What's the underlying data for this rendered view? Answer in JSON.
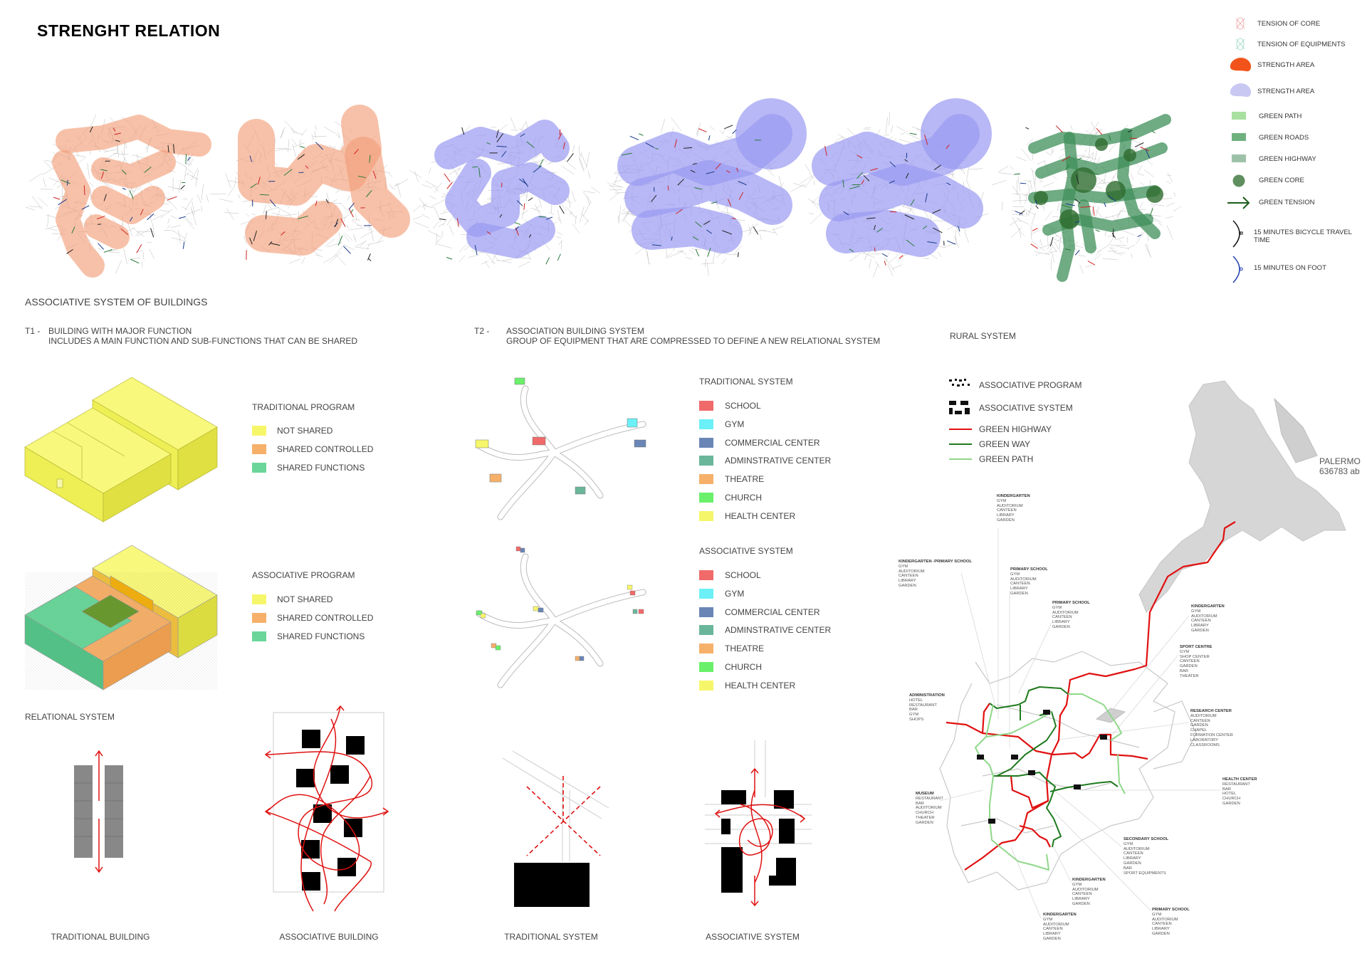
{
  "title": "STRENGHT RELATION",
  "legend": {
    "items": [
      {
        "icon": "tension-of-core-icon",
        "label": "TENSION OF CORE"
      },
      {
        "icon": "tension-of-equipments-icon",
        "label": "TENSION OF EQUIPMENTS"
      },
      {
        "icon": "strength-area-orange-icon",
        "label": "STRENGTH AREA"
      },
      {
        "icon": "strength-area-purple-icon",
        "label": "STRENGTH AREA"
      },
      {
        "icon": "green-path-icon",
        "label": "GREEN PATH"
      },
      {
        "icon": "green-roads-icon",
        "label": "GREEN ROADS"
      },
      {
        "icon": "green-highway-icon",
        "label": "GREEN HIGHWAY"
      },
      {
        "icon": "green-core-icon",
        "label": "GREEN CORE"
      },
      {
        "icon": "green-tension-arrow-icon",
        "label": "GREEN TENSION"
      },
      {
        "icon": "bicycle-arc-icon",
        "label": "15 MINUTES BICYCLE TRAVEL TIME"
      },
      {
        "icon": "foot-arc-icon",
        "label": "15 MINUTES ON FOOT"
      }
    ],
    "colors": {
      "orange": "#f26a3a",
      "purple": "#b9b9f0",
      "green_path": "#a8e0a0",
      "green_roads": "#6fb07f",
      "green_core": "#5f8f5f",
      "green_tension": "#1d5e1d",
      "foot": "#2340b0"
    }
  },
  "section_title": "ASSOCIATIVE SYSTEM OF BUILDINGS",
  "t1": {
    "code": "T1 -",
    "line1": "BUILDING WITH MAJOR FUNCTION",
    "line2": "INCLUDES A MAIN FUNCTION AND SUB-FUNCTIONS THAT CAN BE SHARED"
  },
  "t2": {
    "code": "T2 -",
    "line1": "ASSOCIATION BUILDING SYSTEM",
    "line2": "GROUP OF EQUIPMENT THAT ARE COMPRESSED TO DEFINE A NEW RELATIONAL SYSTEM"
  },
  "rural_title": "RURAL SYSTEM",
  "traditional_program": {
    "title": "TRADITIONAL PROGRAM",
    "items": [
      {
        "label": "NOT SHARED",
        "color": "#f6f66a"
      },
      {
        "label": "SHARED CONTROLLED",
        "color": "#f6b06a"
      },
      {
        "label": "SHARED FUNCTIONS",
        "color": "#6ad69a"
      }
    ]
  },
  "associative_program": {
    "title": "ASSOCIATIVE PROGRAM",
    "items": [
      {
        "label": "NOT SHARED",
        "color": "#f6f66a"
      },
      {
        "label": "SHARED CONTROLLED",
        "color": "#f6b06a"
      },
      {
        "label": "SHARED FUNCTIONS",
        "color": "#6ad69a"
      }
    ]
  },
  "traditional_system": {
    "title": "TRADITIONAL SYSTEM",
    "items": [
      {
        "label": "SCHOOL",
        "color": "#f06a6a"
      },
      {
        "label": "GYM",
        "color": "#6af0f6"
      },
      {
        "label": "COMMERCIAL CENTER",
        "color": "#6a86b6"
      },
      {
        "label": "ADMINSTRATIVE CENTER",
        "color": "#6ab69a"
      },
      {
        "label": "THEATRE",
        "color": "#f6b06a"
      },
      {
        "label": "CHURCH",
        "color": "#6af06a"
      },
      {
        "label": "HEALTH CENTER",
        "color": "#f6f66a"
      }
    ]
  },
  "associative_system": {
    "title": "ASSOCIATIVE SYSTEM",
    "items": [
      {
        "label": "SCHOOL",
        "color": "#f06a6a"
      },
      {
        "label": "GYM",
        "color": "#6af0f6"
      },
      {
        "label": "COMMERCIAL CENTER",
        "color": "#6a86b6"
      },
      {
        "label": "ADMINSTRATIVE CENTER",
        "color": "#6ab69a"
      },
      {
        "label": "THEATRE",
        "color": "#f6b06a"
      },
      {
        "label": "CHURCH",
        "color": "#6af06a"
      },
      {
        "label": "HEALTH CENTER",
        "color": "#f6f66a"
      }
    ]
  },
  "rural_legend": [
    {
      "icon": "associative-program-icon",
      "label": "ASSOCIATIVE PROGRAM"
    },
    {
      "icon": "associative-system-icon",
      "label": "ASSOCIATIVE SYSTEM"
    },
    {
      "icon": "green-highway-line-icon",
      "label": "GREEN HIGHWAY",
      "color": "#e01010"
    },
    {
      "icon": "green-way-line-icon",
      "label": "GREEN WAY",
      "color": "#1e7a1e"
    },
    {
      "icon": "green-path-line-icon",
      "label": "GREEN PATH",
      "color": "#8fd88a"
    }
  ],
  "relational_title": "RELATIONAL SYSTEM",
  "captions": [
    "TRADITIONAL BUILDING",
    "ASSOCIATIVE BUILDING",
    "TRADITIONAL SYSTEM",
    "ASSOCIATIVE SYSTEM"
  ],
  "map": {
    "city": "PALERMO",
    "population": "636783 ab",
    "labels": [
      [
        "KINDERGARTEN",
        "GYM",
        "AUDITORIUM",
        "CANTEEN",
        "LIBRARY",
        "GARDEN"
      ],
      [
        "KINDERGARTEN -PRIMARY SCHOOL",
        "GYM",
        "AUDITORIUM",
        "CANTEEN",
        "LIBRARY",
        "GARDEN"
      ],
      [
        "PRIMARY SCHOOL",
        "GYM",
        "AUDITORIUM",
        "CANTEEN",
        "LIBRARY",
        "GARDEN"
      ],
      [
        "PRIMARY SCHOOL",
        "GYM",
        "AUDITORIUM",
        "CANTEEN",
        "LIBRARY",
        "GARDEN"
      ],
      [
        "ADMINISTRATION",
        "HOTEL",
        "RESTAURANT",
        "BAR",
        "GYM",
        "SHOPS"
      ],
      [
        "KINDERGARTEN",
        "GYM",
        "AUDITORIUM",
        "CANTEEN",
        "LIBRARY",
        "GARDEN"
      ],
      [
        "SPORT CENTRE",
        "GYM",
        "SHOP CENTER",
        "CANTEEN",
        "GARDEN",
        "BAR",
        "THEATER"
      ],
      [
        "RESEARCH CENTER",
        "AUDITORIUM",
        "CANTEEN",
        "GARDEN",
        "CHAPEL",
        "FORMATION CENTER",
        "LABORATORY",
        "CLASSROOMS"
      ],
      [
        "HEALTH CENTER",
        "RESTAURANT",
        "BAR",
        "HOTEL",
        "CHURCH",
        "GARDEN"
      ],
      [
        "MUSEUM",
        "RESTAURANT",
        "BAR",
        "AUDITORIUM",
        "CHURCH",
        "THEATER",
        "GARDEN"
      ],
      [
        "SECONDARY SCHOOL",
        "GYM",
        "AUDITORIUM",
        "CANTEEN",
        "LIBRARY",
        "GARDEN",
        "BAR",
        "SPORT EQUIPMENTS"
      ],
      [
        "KINDERGARTEN",
        "GYM",
        "AUDITORIUM",
        "CANTEEN",
        "LIBRARY",
        "GARDEN"
      ],
      [
        "KINDERGARTEN",
        "GYM",
        "AUDITORIUM",
        "CANTEEN",
        "LIBRARY",
        "GARDEN"
      ],
      [
        "PRIMARY SCHOOL",
        "GYM",
        "AUDITORIUM",
        "CANTEEN",
        "LIBRARY",
        "GARDEN"
      ]
    ]
  }
}
